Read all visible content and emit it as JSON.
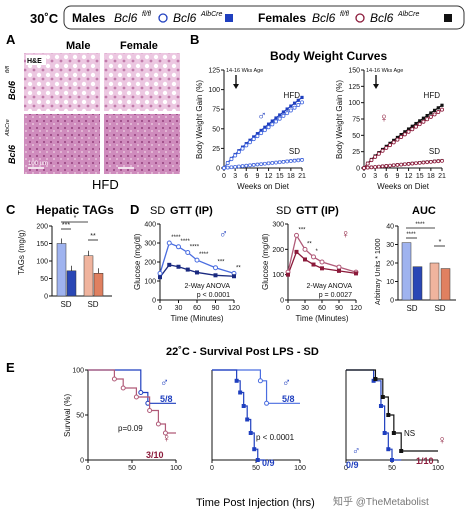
{
  "header": {
    "temp": "30˚C",
    "males_label": "Males",
    "ff": "Bcl6",
    "ff_sup": "fl/fl",
    "cre": "Bcl6",
    "cre_sup": "AlbCre",
    "females_label": "Females"
  },
  "colors": {
    "male_blue": "#1f3fbf",
    "male_light": "#4a6de0",
    "female_maroon": "#8b1a3a",
    "female_pink": "#b05a78",
    "bar_ff_male": "#9fb3ef",
    "bar_cre_male": "#2a47b5",
    "bar_ff_female": "#f0b49e",
    "bar_cre_female": "#e08060",
    "histo_light": "#e9c2dd",
    "histo_dark": "#c47fb0"
  },
  "panelA": {
    "letter": "A",
    "col_male": "Male",
    "col_female": "Female",
    "stain": "H&E",
    "row1_label": "Bcl6",
    "row1_sup": "fl/fl",
    "row2_label": "Bcl6",
    "row2_sup": "AlbCre",
    "scale": "100 um",
    "caption": "HFD"
  },
  "panelB": {
    "letter": "B",
    "title": "Body Weight Curves",
    "ylabel": "Body Weight Gain (%)",
    "xlabel": "Weeks on Diet",
    "annotation": "14-16 Wks Age",
    "hfd": "HFD",
    "sd": "SD",
    "yticks": [
      "0",
      "25",
      "50",
      "75",
      "100",
      "125"
    ],
    "yticks_f": [
      "0",
      "25",
      "50",
      "75",
      "100",
      "125",
      "150"
    ],
    "xticks": [
      "0",
      "3",
      "6",
      "9",
      "12",
      "15",
      "18",
      "21"
    ]
  },
  "panelC": {
    "letter": "C",
    "title": "Hepatic TAGs",
    "ylabel": "TAGs (mg/g)",
    "yticks": [
      "0",
      "50",
      "100",
      "150",
      "200"
    ],
    "x1": "SD",
    "x2": "SD",
    "sig1": "***",
    "sig2": "*",
    "sig3": "**"
  },
  "panelD": {
    "letter": "D",
    "title_m": "GTT (IP)",
    "title_f": "GTT (IP)",
    "sd_m": "SD",
    "sd_f": "SD",
    "ylabel": "Glucose (mg/dl)",
    "xlabel": "Time (Minutes)",
    "yticks_m": [
      "0",
      "100",
      "200",
      "300",
      "400"
    ],
    "yticks_f": [
      "0",
      "100",
      "200",
      "300"
    ],
    "xticks": [
      "0",
      "30",
      "60",
      "90",
      "120"
    ],
    "anova": "2-Way ANOVA",
    "p_m": "p < 0.0001",
    "p_f": "p = 0.0027",
    "stars_m": [
      "****",
      "****",
      "****",
      "****",
      "***",
      "**"
    ],
    "stars_f": [
      "***",
      "**",
      "*"
    ],
    "auc_title": "AUC",
    "auc_ylabel": "Arbitrary Units * 1000",
    "auc_yticks": [
      "0",
      "10",
      "20",
      "30",
      "40"
    ],
    "auc_sig1": "****",
    "auc_sig2": "****",
    "auc_sig3": "*",
    "auc_x1": "SD",
    "auc_x2": "SD"
  },
  "panelE": {
    "letter": "E",
    "title": "22˚C - Survival Post LPS - SD",
    "ylabel": "Survival (%)",
    "xlabel": "Time Post Injection (hrs)",
    "yticks": [
      "0",
      "50",
      "100"
    ],
    "xticks": [
      "0",
      "50",
      "100"
    ],
    "p1": "p=0.09",
    "n1a": "5/8",
    "n1b": "3/10",
    "p2": "p < 0.0001",
    "n2a": "5/8",
    "n2b": "0/9",
    "ns": "NS",
    "n3a": "0/9",
    "n3b": "1/10"
  },
  "watermark": "知乎 @TheMetabolist"
}
